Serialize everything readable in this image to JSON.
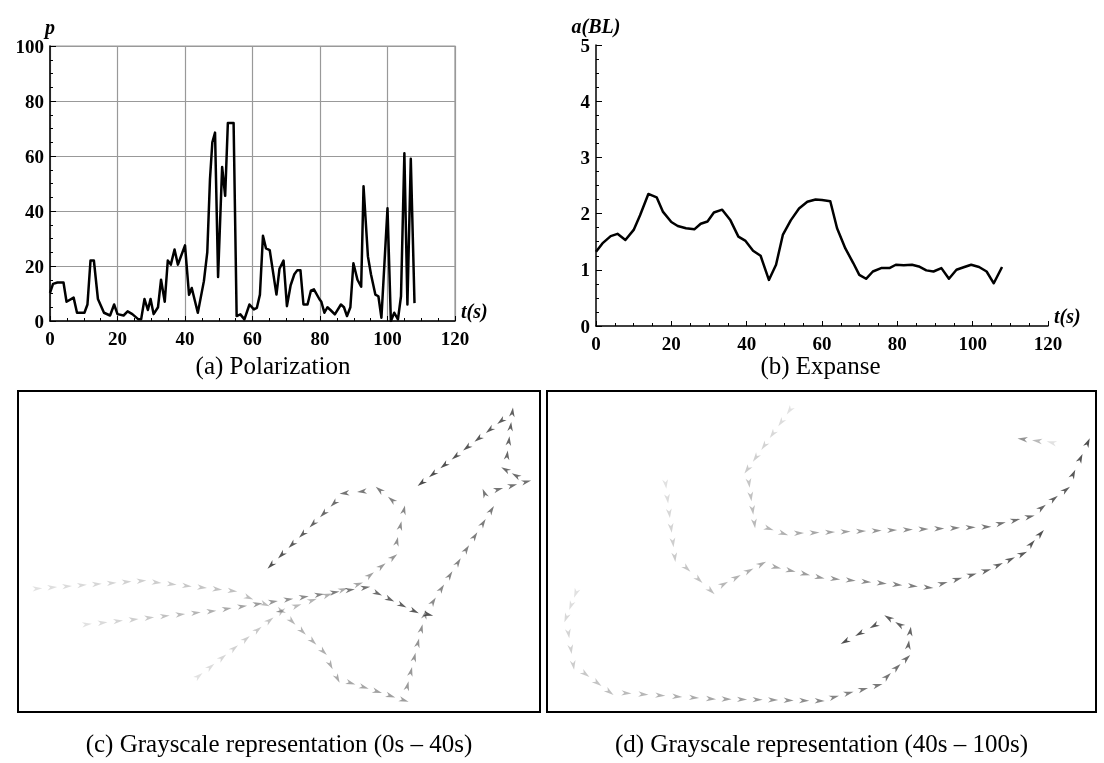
{
  "chart_data": [
    {
      "type": "line",
      "title": "(a) Polarization",
      "xlabel": "t(s)",
      "ylabel": "p",
      "color": "#000000",
      "marker": "none",
      "line_style": "solid",
      "grid": true,
      "x": [
        0,
        0.9,
        2.2,
        4,
        4.9,
        7,
        8,
        10.2,
        11.1,
        12,
        13,
        14.2,
        16,
        17.8,
        19,
        20,
        21.8,
        23,
        24.4,
        26.2,
        27,
        28,
        29,
        29.8,
        30.7,
        32,
        32.9,
        34,
        34.9,
        35.8,
        36.9,
        37.9,
        40,
        41.2,
        42,
        43.8,
        45.6,
        46.6,
        47.4,
        48.1,
        48.9,
        49.8,
        51,
        51.9,
        52.7,
        54.4,
        55.3,
        56.4,
        57.6,
        59.1,
        60.4,
        61.3,
        62.2,
        63.1,
        64,
        65.1,
        67.1,
        68,
        69.2,
        70.2,
        71.3,
        72.4,
        73.3,
        74.2,
        75.1,
        76.3,
        77.3,
        78.2,
        79.8,
        80.4,
        81.3,
        82.2,
        83.1,
        84.4,
        86.2,
        87.1,
        88,
        89,
        89.9,
        91.1,
        92.2,
        92.9,
        94.2,
        95.1,
        96.4,
        97.3,
        98.2,
        100,
        101,
        102,
        103.1,
        104,
        105,
        105.9,
        106.9,
        108
      ],
      "values": [
        10.2,
        13.5,
        14,
        14,
        7,
        8.5,
        3,
        3,
        6,
        22,
        22,
        8,
        3,
        2,
        6,
        2.5,
        2,
        3.5,
        2.5,
        0.6,
        0.6,
        8,
        4,
        8,
        2.5,
        5,
        15,
        7,
        22,
        20.5,
        26,
        20.5,
        27.5,
        9.5,
        12,
        3,
        14.5,
        25,
        51.5,
        65,
        68.5,
        16,
        56,
        45.5,
        72,
        72,
        1.8,
        2.4,
        0.6,
        6,
        4.2,
        4.8,
        9.6,
        31,
        26.4,
        25.8,
        9.6,
        19,
        22,
        5.4,
        13,
        17,
        18.5,
        18.5,
        6,
        6,
        11,
        11.5,
        8,
        7,
        3,
        5,
        4,
        2.4,
        6,
        5,
        1.8,
        5,
        21,
        15,
        12.5,
        49,
        23.5,
        17,
        9.6,
        9,
        1.2,
        41,
        0,
        3,
        0.6,
        9,
        61,
        6,
        59,
        6.5
      ],
      "xlim": [
        0,
        120
      ],
      "xticks": [
        0,
        20,
        40,
        60,
        80,
        100,
        120
      ],
      "ylim": [
        0,
        100
      ],
      "yticks": [
        0,
        20,
        40,
        60,
        80,
        100
      ]
    },
    {
      "type": "line",
      "title": "(b) Expanse",
      "xlabel": "t(s)",
      "ylabel": "a(BL)",
      "color": "#000000",
      "marker": "none",
      "line_style": "solid",
      "grid": false,
      "x": [
        0,
        1.7,
        3.9,
        5.7,
        7.8,
        10,
        11.7,
        13.9,
        16.1,
        17.8,
        20,
        21.7,
        23.9,
        26.1,
        27.8,
        29.6,
        31.3,
        33.5,
        35.7,
        37.8,
        39.6,
        41.7,
        43.7,
        45.9,
        47.8,
        49.6,
        51.7,
        53.9,
        56.1,
        58.3,
        60,
        62.2,
        64,
        66.2,
        68.3,
        69.9,
        71.7,
        73.5,
        75.7,
        77.9,
        79.6,
        81.7,
        83.9,
        85.7,
        87.7,
        89.6,
        91.7,
        93.7,
        95.7,
        97.8,
        99.6,
        101.7,
        103.7,
        105.6,
        107.8
      ],
      "values": [
        1.32,
        1.47,
        1.6,
        1.64,
        1.53,
        1.71,
        1.97,
        2.35,
        2.29,
        2.03,
        1.85,
        1.78,
        1.74,
        1.72,
        1.82,
        1.86,
        2.02,
        2.07,
        1.88,
        1.59,
        1.52,
        1.34,
        1.25,
        0.82,
        1.09,
        1.62,
        1.88,
        2.09,
        2.21,
        2.25,
        2.24,
        2.22,
        1.74,
        1.38,
        1.12,
        0.91,
        0.84,
        0.97,
        1.03,
        1.03,
        1.09,
        1.08,
        1.09,
        1.06,
        0.99,
        0.97,
        1.03,
        0.84,
        1.0,
        1.05,
        1.09,
        1.05,
        0.97,
        0.76,
        1.05
      ],
      "xlim": [
        0,
        120
      ],
      "xticks": [
        0,
        20,
        40,
        60,
        80,
        100,
        120
      ],
      "ylim": [
        0,
        5
      ],
      "yticks": [
        0,
        1,
        2,
        3,
        4,
        5
      ]
    },
    {
      "type": "other",
      "title": "(c) Grayscale representation (0s – 40s)"
    },
    {
      "type": "other",
      "title": "(d) Grayscale representation (40s – 100s)"
    }
  ]
}
